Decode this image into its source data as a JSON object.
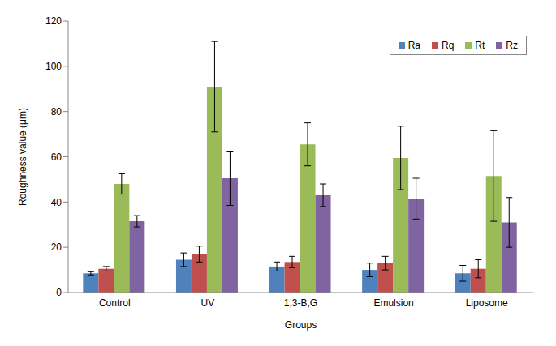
{
  "chart_data": {
    "type": "bar",
    "x_label": "Groups",
    "y_label": "Roughness value (μm)",
    "categories": [
      "Control",
      "UV",
      "1,3-B,G",
      "Emulsion",
      "Liposome"
    ],
    "series": [
      {
        "name": "Ra",
        "color": "#4f81bd",
        "values": [
          8.5,
          14.5,
          11.5,
          10,
          8.5
        ],
        "errors": [
          0.7,
          3,
          2,
          3,
          3.5
        ]
      },
      {
        "name": "Rq",
        "color": "#c0504d",
        "values": [
          10.5,
          17,
          13.5,
          13,
          10.5
        ],
        "errors": [
          1,
          3.5,
          2.5,
          3,
          4
        ]
      },
      {
        "name": "Rt",
        "color": "#9bbb59",
        "values": [
          48,
          91,
          65.5,
          59.5,
          51.5
        ],
        "errors": [
          4.5,
          20,
          9.5,
          14,
          20
        ]
      },
      {
        "name": "Rz",
        "color": "#8064a2",
        "values": [
          31.5,
          50.5,
          43,
          41.5,
          31
        ],
        "errors": [
          2.5,
          12,
          5,
          9,
          11
        ]
      }
    ],
    "ylim": [
      0,
      120
    ],
    "yticks": [
      0,
      20,
      40,
      60,
      80,
      100,
      120
    ],
    "grid": false,
    "legend": "upper right"
  }
}
